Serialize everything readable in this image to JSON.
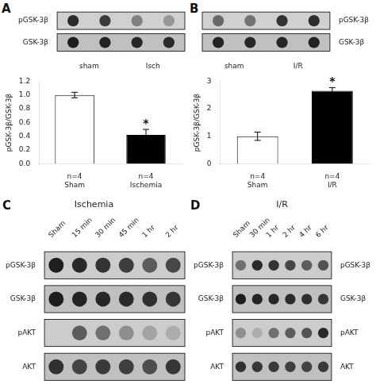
{
  "chart_data": [
    {
      "type": "blot",
      "label": "A",
      "rows": [
        "pGSK-3β",
        "GSK-3β"
      ],
      "groups": [
        "sham",
        "Isch"
      ],
      "cells": [
        [
          0.8,
          0.72,
          0.38,
          0.28
        ],
        [
          0.85,
          0.82,
          0.8,
          0.78
        ]
      ],
      "row_colors": [
        "#d0d0d0",
        "#c0c0c0"
      ]
    },
    {
      "type": "bar",
      "categories": [
        "n=4\nSham",
        "n=4\nIschemia"
      ],
      "values": [
        1.0,
        0.42
      ],
      "errors": [
        0.04,
        0.08
      ],
      "colors": [
        "white",
        "black"
      ],
      "ylabel": "pGSK-3β/GSK-3β",
      "ylim": [
        0,
        1.2
      ],
      "yticks": [
        {
          "value": 0,
          "label": "0.0"
        },
        0.2,
        0.4,
        0.6,
        0.8,
        {
          "value": 1,
          "label": "1.0"
        },
        1.2
      ],
      "grid": false,
      "annotations": [
        {
          "text": "*",
          "category": "n=4\nIschemia"
        }
      ]
    },
    {
      "type": "blot",
      "label": "B",
      "rows": [
        "pGSK-3β",
        "GSK-3β"
      ],
      "groups": [
        "sham",
        "I/R"
      ],
      "cells": [
        [
          0.5,
          0.45,
          0.75,
          0.78
        ],
        [
          0.82,
          0.8,
          0.8,
          0.82
        ]
      ],
      "row_colors": [
        "#d0d0d0",
        "#c0c0c0"
      ]
    },
    {
      "type": "bar",
      "categories": [
        "n=4\nSham",
        "n=4\nI/R"
      ],
      "values": [
        1.0,
        2.65
      ],
      "errors": [
        0.15,
        0.12
      ],
      "colors": [
        "white",
        "black"
      ],
      "ylabel": "pGSK-3β/GSK-3β",
      "ylim": [
        0,
        3
      ],
      "yticks": [
        0,
        1,
        2,
        3
      ],
      "grid": false,
      "annotations": [
        {
          "text": "*",
          "category": "n=4\nI/R"
        }
      ]
    },
    {
      "type": "blot",
      "label": "C",
      "title": "Ischemia",
      "categories": [
        "Sham",
        "15 min",
        "30 min",
        "45 min",
        "1 hr",
        "2 hr"
      ],
      "rows": [
        "pGSK-3β",
        "GSK-3β",
        "pAKT",
        "AKT"
      ],
      "cells": [
        [
          0.85,
          0.8,
          0.75,
          0.7,
          0.55,
          0.65
        ],
        [
          0.85,
          0.82,
          0.8,
          0.78,
          0.75,
          0.72
        ],
        [
          0.0,
          0.55,
          0.45,
          0.3,
          0.2,
          0.15
        ],
        [
          0.75,
          0.65,
          0.7,
          0.68,
          0.6,
          0.72
        ]
      ],
      "row_colors": [
        "#cccccc",
        "#c0c0c0",
        "#cccccc",
        "#c0c0c0"
      ]
    },
    {
      "type": "blot",
      "label": "D",
      "title": "I/R",
      "categories": [
        "Sham",
        "30 min",
        "1 hr",
        "2 hr",
        "4 hr",
        "6 hr"
      ],
      "rows": [
        "pGSK-3β",
        "GSK-3β",
        "pAKT",
        "AKT"
      ],
      "cells": [
        [
          0.45,
          0.8,
          0.75,
          0.65,
          0.55,
          0.6
        ],
        [
          0.85,
          0.82,
          0.8,
          0.78,
          0.75,
          0.72
        ],
        [
          0.3,
          0.15,
          0.45,
          0.55,
          0.6,
          0.8
        ],
        [
          0.75,
          0.72,
          0.7,
          0.68,
          0.65,
          0.7
        ]
      ],
      "row_colors": [
        "#cccccc",
        "#c0c0c0",
        "#cccccc",
        "#c0c0c0"
      ]
    }
  ]
}
